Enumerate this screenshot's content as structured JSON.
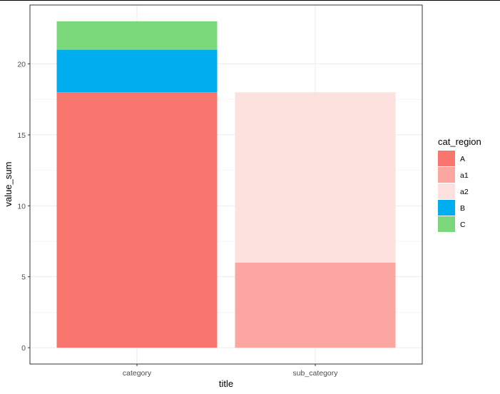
{
  "chart_data": {
    "type": "bar",
    "stacked": true,
    "categories": [
      "category",
      "sub_category"
    ],
    "xlabel": "title",
    "ylabel": "value_sum",
    "ylim": [
      -1.15,
      24.15
    ],
    "yticks": [
      0,
      5,
      10,
      15,
      20
    ],
    "grid": true,
    "theme": "bw",
    "legend_position": "right",
    "legend_title": "cat_region",
    "series": [
      {
        "name": "A",
        "color": "#F8766D",
        "values": [
          18,
          0
        ]
      },
      {
        "name": "a1",
        "color": "#FBA6A0",
        "values": [
          0,
          6
        ]
      },
      {
        "name": "a2",
        "color": "#FDE1DE",
        "values": [
          0,
          12
        ]
      },
      {
        "name": "B",
        "color": "#00AEEF",
        "values": [
          3,
          0
        ]
      },
      {
        "name": "C",
        "color": "#7AD87A",
        "values": [
          2,
          0
        ]
      }
    ]
  }
}
